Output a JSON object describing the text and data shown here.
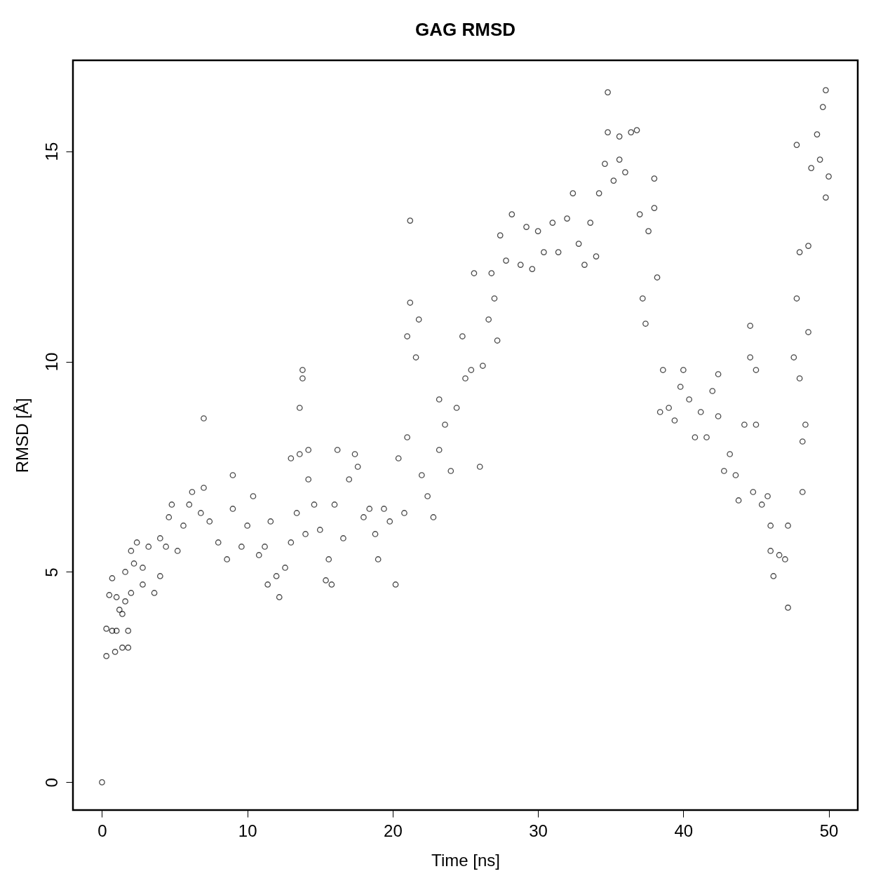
{
  "chart_data": {
    "type": "scatter",
    "title": "GAG RMSD",
    "xlabel": "Time [ns]",
    "ylabel": "RMSD [Å]",
    "xlim": [
      -2,
      52
    ],
    "ylim": [
      -0.66,
      17.16
    ],
    "xticks": [
      0,
      10,
      20,
      30,
      40,
      50
    ],
    "yticks": [
      0,
      5,
      10,
      15
    ],
    "grid": false,
    "marker": "circle",
    "series": [
      {
        "color": "#000000",
        "x": [
          0,
          0.3,
          0.3,
          0.5,
          0.7,
          0.7,
          0.9,
          1.0,
          1.0,
          1.2,
          1.4,
          1.4,
          1.6,
          1.6,
          1.8,
          1.8,
          2.0,
          2.0,
          2.2,
          2.4,
          2.8,
          2.8,
          3.2,
          3.6,
          4.0,
          4.0,
          4.4,
          4.6,
          4.8,
          5.2,
          5.6,
          6.0,
          6.2,
          6.8,
          7.0,
          7.0,
          7.4,
          8.0,
          8.6,
          9.0,
          9.0,
          9.6,
          10.0,
          10.4,
          10.8,
          11.2,
          11.4,
          11.6,
          12.0,
          12.2,
          12.6,
          13.0,
          13.0,
          13.4,
          13.6,
          13.6,
          13.8,
          13.8,
          14.0,
          14.2,
          14.2,
          14.6,
          15.0,
          15.4,
          15.6,
          15.8,
          16.0,
          16.2,
          16.6,
          17.0,
          17.4,
          17.6,
          18.0,
          18.4,
          18.8,
          19.0,
          19.4,
          19.8,
          20.2,
          20.4,
          20.8,
          21.0,
          21.0,
          21.2,
          21.2,
          21.6,
          21.8,
          22.0,
          22.4,
          22.8,
          23.2,
          23.2,
          23.6,
          24.0,
          24.4,
          24.8,
          25.0,
          25.4,
          25.6,
          26.0,
          26.2,
          26.6,
          26.8,
          27.0,
          27.2,
          27.4,
          27.8,
          28.2,
          28.8,
          29.2,
          29.6,
          30.0,
          30.4,
          31.0,
          31.4,
          32.0,
          32.4,
          32.8,
          33.2,
          33.6,
          34.0,
          34.2,
          34.6,
          34.8,
          34.8,
          35.2,
          35.6,
          35.6,
          36.0,
          36.4,
          36.8,
          37.0,
          37.2,
          37.4,
          37.6,
          38.0,
          38.0,
          38.2,
          38.4,
          38.6,
          39.0,
          39.4,
          39.8,
          40.0,
          40.4,
          40.8,
          41.2,
          41.6,
          42.0,
          42.4,
          42.4,
          42.8,
          43.2,
          43.6,
          43.8,
          44.2,
          44.6,
          44.6,
          44.8,
          45.0,
          45.0,
          45.4,
          45.8,
          46.0,
          46.0,
          46.2,
          46.6,
          47.0,
          47.2,
          47.2,
          47.6,
          47.8,
          47.8,
          48.0,
          48.0,
          48.2,
          48.2,
          48.4,
          48.6,
          48.6,
          48.8,
          49.2,
          49.4,
          49.6,
          49.8,
          49.8,
          50.0
        ],
        "values": [
          0,
          3.65,
          3.0,
          4.45,
          3.6,
          4.85,
          3.1,
          4.4,
          3.6,
          4.1,
          3.2,
          4.0,
          5.0,
          4.3,
          3.2,
          3.6,
          4.5,
          5.5,
          5.2,
          5.7,
          4.7,
          5.1,
          5.6,
          4.5,
          5.8,
          4.9,
          5.6,
          6.3,
          6.6,
          5.5,
          6.1,
          6.6,
          6.9,
          6.4,
          8.65,
          7.0,
          6.2,
          5.7,
          5.3,
          7.3,
          6.5,
          5.6,
          6.1,
          6.8,
          5.4,
          5.6,
          4.7,
          6.2,
          4.9,
          4.4,
          5.1,
          7.7,
          5.7,
          6.4,
          8.9,
          7.8,
          9.8,
          9.6,
          5.9,
          7.9,
          7.2,
          6.6,
          6.0,
          4.8,
          5.3,
          4.7,
          6.6,
          7.9,
          5.8,
          7.2,
          7.8,
          7.5,
          6.3,
          6.5,
          5.9,
          5.3,
          6.5,
          6.2,
          4.7,
          7.7,
          6.4,
          8.2,
          10.6,
          13.35,
          11.4,
          10.1,
          11.0,
          7.3,
          6.8,
          6.3,
          9.1,
          7.9,
          8.5,
          7.4,
          8.9,
          10.6,
          9.6,
          9.8,
          12.1,
          7.5,
          9.9,
          11.0,
          12.1,
          11.5,
          10.5,
          13.0,
          12.4,
          13.5,
          12.3,
          13.2,
          12.2,
          13.1,
          12.6,
          13.3,
          12.6,
          13.4,
          14.0,
          12.8,
          12.3,
          13.3,
          12.5,
          14.0,
          14.7,
          16.4,
          15.45,
          14.3,
          14.8,
          15.35,
          14.5,
          15.45,
          15.5,
          13.5,
          11.5,
          10.9,
          13.1,
          14.35,
          13.65,
          12.0,
          8.8,
          9.8,
          8.9,
          8.6,
          9.4,
          9.8,
          9.1,
          8.2,
          8.8,
          8.2,
          9.3,
          9.7,
          8.7,
          7.4,
          7.8,
          7.3,
          6.7,
          8.5,
          10.85,
          10.1,
          6.9,
          9.8,
          8.5,
          6.6,
          6.8,
          5.5,
          6.1,
          4.9,
          5.4,
          5.3,
          4.15,
          6.1,
          10.1,
          15.15,
          11.5,
          12.6,
          9.6,
          6.9,
          8.1,
          8.5,
          10.7,
          12.75,
          14.6,
          15.4,
          14.8,
          16.05,
          16.45,
          13.9,
          14.4
        ]
      }
    ]
  }
}
